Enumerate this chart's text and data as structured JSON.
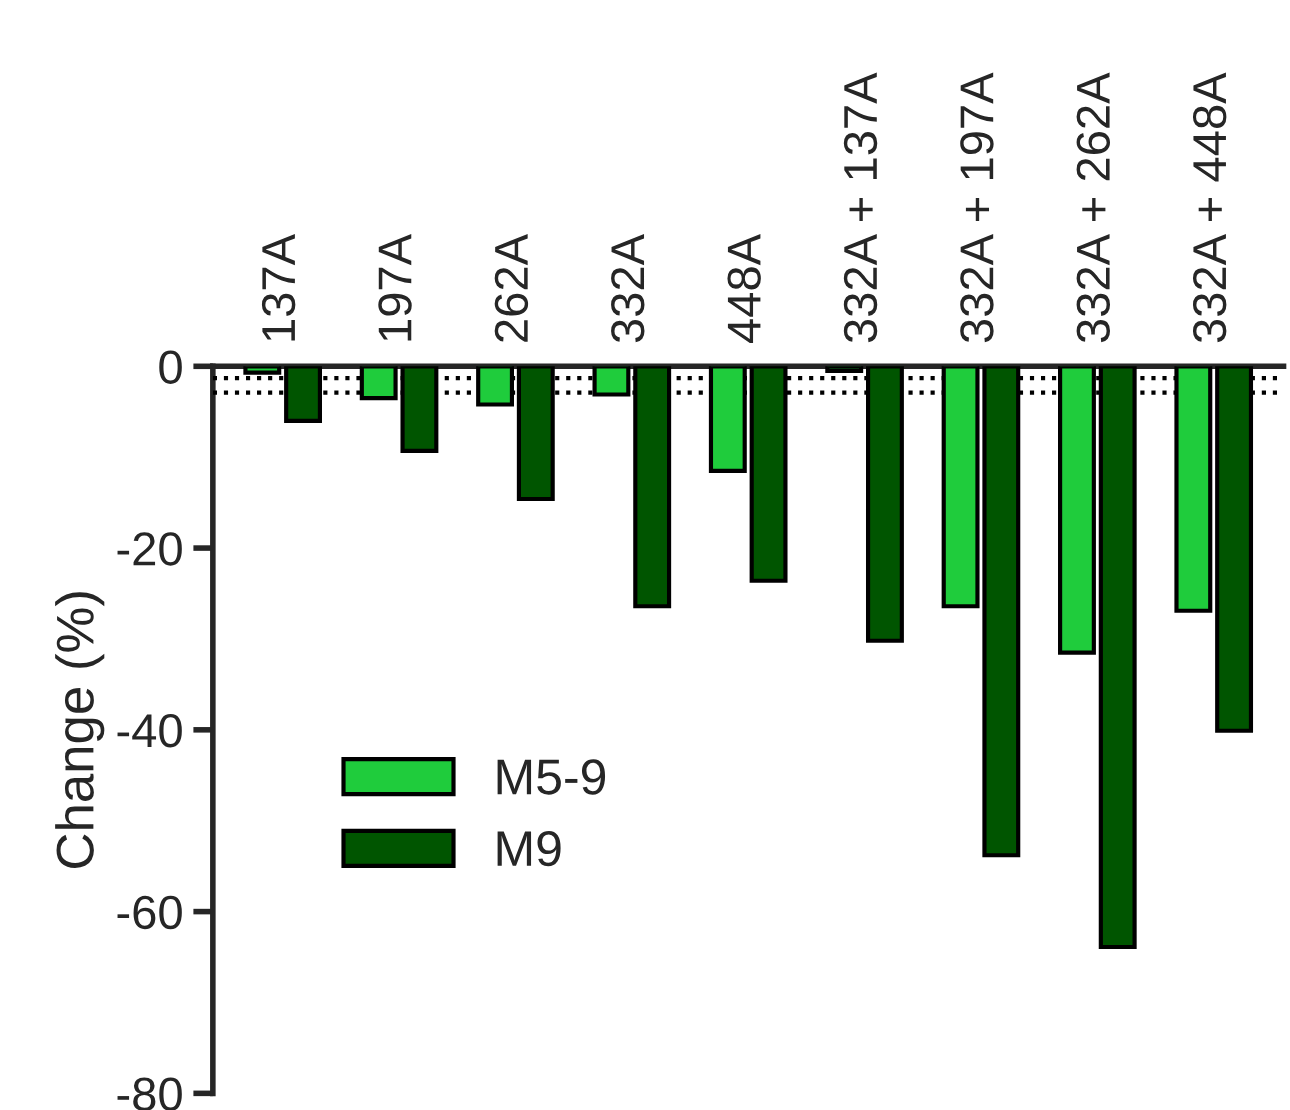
{
  "chart_data": {
    "type": "bar",
    "ylabel": "Change (%)",
    "categories": [
      "137A",
      "197A",
      "262A",
      "332A",
      "448A",
      "332A + 137A",
      "332A + 197A",
      "332A + 262A",
      "332A + 448A"
    ],
    "series": [
      {
        "name": "M5-9",
        "color": "#1fcc3c",
        "values": [
          -0.7,
          -3.5,
          -4.2,
          -3.1,
          -11.5,
          -0.5,
          -26.4,
          -31.5,
          -26.9
        ]
      },
      {
        "name": "M9",
        "color": "#005500",
        "values": [
          -6.0,
          -9.3,
          -14.6,
          -26.4,
          -23.6,
          -30.2,
          -53.8,
          -63.9,
          -40.1
        ]
      }
    ],
    "ylim": [
      -80,
      0
    ],
    "yticks": [
      -80,
      -60,
      -40,
      -20,
      0
    ],
    "ref_lines": [
      {
        "axis": "y",
        "value": -1.3,
        "line_style": "dotted"
      },
      {
        "axis": "y",
        "value": -2.9,
        "line_style": "dotted"
      }
    ],
    "legend": "left",
    "grid": false
  }
}
